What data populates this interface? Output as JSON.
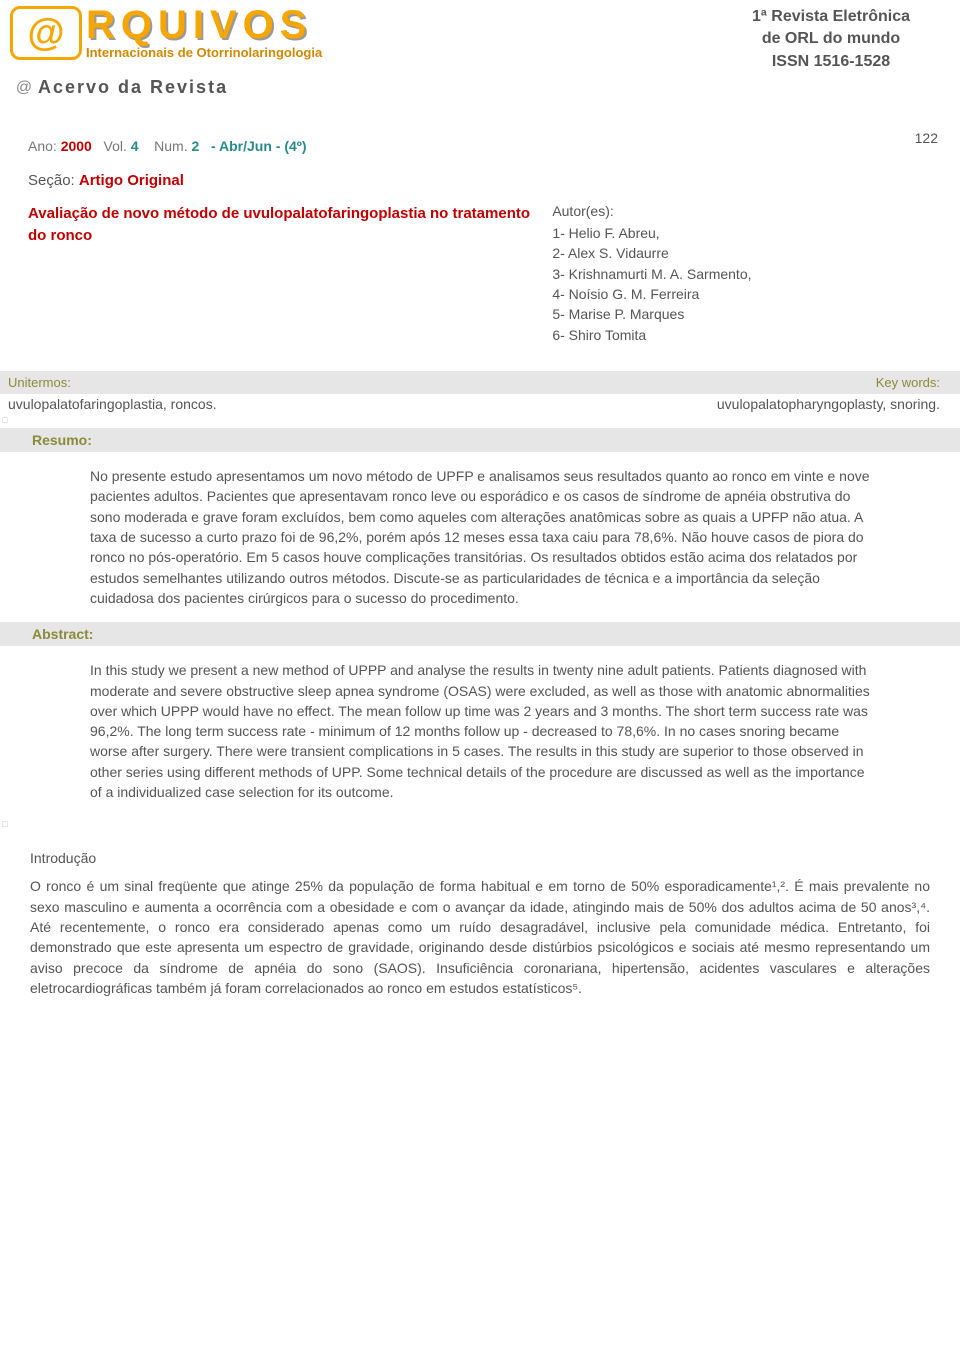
{
  "header": {
    "logo_main": "RQUIVOS",
    "logo_sub": "Internacionais de Otorrinolaringologia",
    "magazine_line1": "1ª Revista Eletrônica",
    "magazine_line2": "de ORL do mundo",
    "magazine_line3": "ISSN 1516-1528",
    "acervo": "Acervo da Revista",
    "page_number": "122"
  },
  "issue": {
    "ano_label": "Ano:",
    "ano": "2000",
    "vol_label": "Vol.",
    "vol": "4",
    "num_label": "Num.",
    "num": "2",
    "period": "- Abr/Jun - (4º)"
  },
  "section": {
    "label": "Seção:",
    "value": "Artigo Original"
  },
  "article": {
    "title": "Avaliação de novo método de uvulopalatofaringoplastia no tratamento do ronco"
  },
  "authors": {
    "header": "Autor(es):",
    "list": [
      "1- Helio F. Abreu,",
      "2- Alex S. Vidaurre",
      "3- Krishnamurti M. A. Sarmento,",
      "4- Noísio G. M. Ferreira",
      "5- Marise P. Marques",
      "6- Shiro Tomita"
    ]
  },
  "keywords": {
    "left_label": "Unitermos:",
    "right_label": "Key words:",
    "left_terms": "uvulopalatofaringoplastia, roncos.",
    "right_terms": "uvulopalatopharyngoplasty, snoring."
  },
  "resumo": {
    "label": "Resumo:",
    "text": "No presente estudo apresentamos um novo método de UPFP e analisamos seus resultados quanto ao ronco em vinte e nove pacientes adultos. Pacientes que apresentavam ronco leve ou esporádico e os casos de síndrome de apnéia obstrutiva do sono moderada e grave foram excluídos, bem como aqueles com alterações anatômicas sobre as quais a UPFP não atua. A taxa de sucesso a curto prazo foi de 96,2%, porém após 12 meses essa taxa caiu para 78,6%. Não houve casos de piora do ronco no pós-operatório. Em 5 casos houve complicações transitórias. Os resultados obtidos estão acima dos relatados por estudos semelhantes utilizando outros métodos. Discute-se as particularidades de técnica e a importância da seleção cuidadosa dos pacientes cirúrgicos para o sucesso do procedimento."
  },
  "abstract": {
    "label": "Abstract:",
    "text": "In this study we present a new method of UPPP and analyse the results in twenty nine adult patients. Patients diagnosed with moderate and severe obstructive sleep apnea syndrome (OSAS) were excluded, as well as those with anatomic abnormalities over which UPPP would have no effect. The mean follow up time was 2 years and 3 months. The short term success rate was 96,2%. The long term success rate - minimum of 12 months follow up - decreased to 78,6%. In no cases snoring became worse after surgery. There were transient complications in 5 cases. The results in this study are superior to those observed in other series using different methods of UPP. Some technical details of the procedure are discussed as well as the importance of a individualized case selection for its outcome."
  },
  "intro": {
    "label": "Introdução",
    "text": "O ronco é um sinal freqüente que atinge 25% da população de forma habitual e em torno de 50% esporadicamente¹,². É mais prevalente no sexo masculino e aumenta a ocorrência com a obesidade e com o avançar da idade, atingindo mais de 50% dos adultos acima de 50 anos³,⁴. Até recentemente, o ronco era considerado apenas como um ruído desagradável, inclusive pela comunidade médica. Entretanto, foi demonstrado que este apresenta um espectro de gravidade, originando desde distúrbios psicológicos e sociais até mesmo representando um aviso precoce da síndrome de apnéia do sono (SAOS). Insuficiência coronariana, hipertensão, acidentes vasculares e alterações eletrocardiográficas também já foram correlacionados ao ronco em estudos estatísticos⁵."
  },
  "colors": {
    "accent_red": "#c00000",
    "accent_teal": "#2a8a8a",
    "logo_orange": "#f6a600",
    "olive_label": "#8a8a3a",
    "gray_bar": "#e6e6e6",
    "text_gray": "#555555"
  }
}
